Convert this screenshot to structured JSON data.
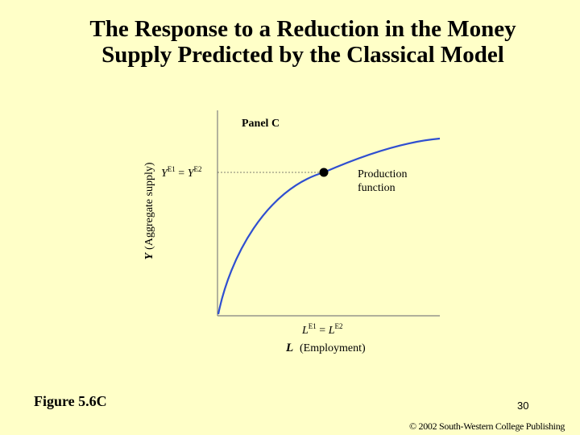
{
  "slide": {
    "title_line1": "The Response to a Reduction in the Money",
    "title_line2": "Supply Predicted by the Classical Model",
    "figure_label": "Figure 5.6C",
    "page_number": "30",
    "copyright": "© 2002 South-Western College Publishing"
  },
  "diagram": {
    "panel_label": "Panel C",
    "y_axis_label_var": "Y",
    "y_axis_label_text": "(Aggregate supply)",
    "x_axis_label_var": "L",
    "x_axis_label_text": "(Employment)",
    "y_eq_var1": "Y",
    "y_eq_sup1": "E1",
    "y_eq_mid": " = ",
    "y_eq_var2": "Y",
    "y_eq_sup2": "E2",
    "l_eq_var1": "L",
    "l_eq_sup1": "E1",
    "l_eq_mid": " = ",
    "l_eq_var2": "L",
    "l_eq_sup2": "E2",
    "curve_label_line1": "Production",
    "curve_label_line2": "function",
    "curve_color": "#2f4fd0"
  }
}
